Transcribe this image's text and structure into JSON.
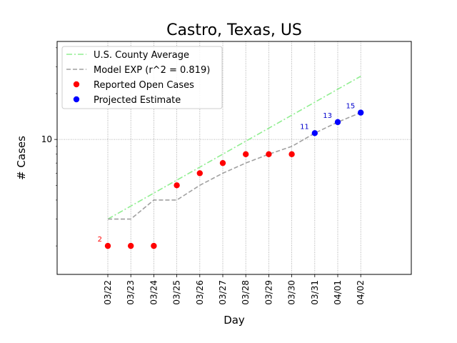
{
  "chart_data": {
    "type": "line",
    "title": "Castro, Texas, US",
    "xlabel": "Day",
    "ylabel": "# Cases",
    "y_scale": "log",
    "ylim": [
      1.3,
      44
    ],
    "y_tick_label": "10",
    "grid": true,
    "legend_placement": "top-left",
    "categories": [
      "03/22",
      "03/23",
      "03/24",
      "03/25",
      "03/26",
      "03/27",
      "03/28",
      "03/29",
      "03/30",
      "03/31",
      "04/01",
      "04/02"
    ],
    "series": [
      {
        "name": "U.S. County Average",
        "style": "dashdot",
        "color": "#90ee90",
        "x": [
          "03/22",
          "04/02"
        ],
        "values": [
          3,
          26
        ]
      },
      {
        "name": "Model EXP (r^2 = 0.819)",
        "style": "dashed",
        "color": "#a0a0a0",
        "values": [
          3,
          3,
          4,
          4,
          5,
          6,
          7,
          8,
          9,
          11,
          13,
          15
        ]
      },
      {
        "name": "Reported Open Cases",
        "style": "markers",
        "color": "#ff0000",
        "x": [
          "03/22",
          "03/23",
          "03/24",
          "03/25",
          "03/26",
          "03/27",
          "03/28",
          "03/29",
          "03/30"
        ],
        "values": [
          2,
          2,
          2,
          5,
          6,
          7,
          8,
          8,
          8
        ]
      },
      {
        "name": "Projected Estimate",
        "style": "markers",
        "color": "#0000ff",
        "x": [
          "03/31",
          "04/01",
          "04/02"
        ],
        "values": [
          11,
          13,
          15
        ]
      }
    ],
    "annotations": [
      {
        "x": "03/22",
        "text": "2",
        "value": 2,
        "color": "#ff0000"
      },
      {
        "x": "03/31",
        "text": "11",
        "value": 11,
        "color": "#0000cc"
      },
      {
        "x": "04/01",
        "text": "13",
        "value": 13,
        "color": "#0000cc"
      },
      {
        "x": "04/02",
        "text": "15",
        "value": 15,
        "color": "#0000cc"
      }
    ]
  }
}
